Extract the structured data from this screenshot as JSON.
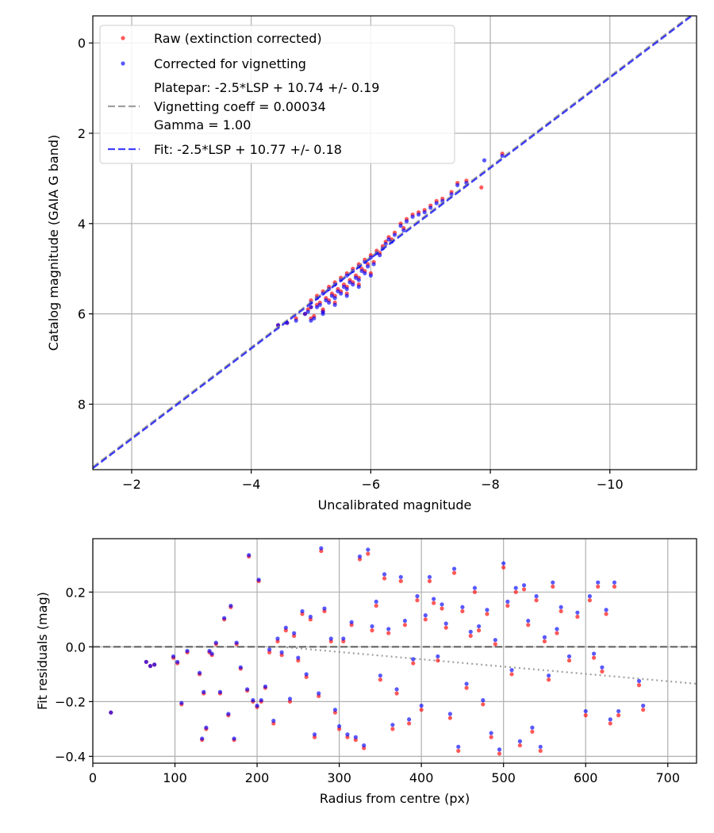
{
  "chart_data": [
    {
      "type": "scatter",
      "xlabel": "Uncalibrated magnitude",
      "ylabel": "Catalog magnitude (GAIA G band)",
      "xlim": [
        -1.35,
        -11.45
      ],
      "ylim": [
        9.45,
        -0.6
      ],
      "x_inverted": true,
      "y_inverted": true,
      "xticks": [
        -2,
        -4,
        -6,
        -8,
        -10
      ],
      "xtick_labels": [
        "−2",
        "−4",
        "−6",
        "−8",
        "−10"
      ],
      "yticks": [
        0,
        2,
        4,
        6,
        8
      ],
      "ytick_labels": [
        "0",
        "2",
        "4",
        "6",
        "8"
      ],
      "grid": true,
      "legend_position": "upper-left",
      "legend": [
        {
          "kind": "marker",
          "color": "#ff0000",
          "lines": [
            "Raw (extinction corrected)"
          ]
        },
        {
          "kind": "marker",
          "color": "#0000ff",
          "lines": [
            "Corrected for vignetting"
          ]
        },
        {
          "kind": "line",
          "color": "#808080",
          "dash": "dashed",
          "lines": [
            "Platepar: -2.5*LSP + 10.74 +/- 0.19",
            "Vignetting coeff = 0.00034",
            "Gamma = 1.00"
          ]
        },
        {
          "kind": "line",
          "color": "#0000ff",
          "dash": "dashed",
          "lines": [
            "Fit: -2.5*LSP + 10.77 +/- 0.18"
          ]
        }
      ],
      "series": [
        {
          "name": "Platepar: -2.5*LSP + 10.74 +/- 0.19",
          "kind": "line",
          "color": "#808080",
          "slope": 1.0,
          "intercept": 10.74
        },
        {
          "name": "Fit: -2.5*LSP + 10.77 +/- 0.18",
          "kind": "line",
          "color": "#0000ff",
          "slope": 1.0,
          "intercept": 10.77
        },
        {
          "name": "Raw (extinction corrected)",
          "kind": "scatter",
          "color": "#ff0000",
          "x": [
            -4.45,
            -4.6,
            -4.75,
            -4.9,
            -4.95,
            -5.0,
            -5.0,
            -5.05,
            -5.1,
            -5.1,
            -5.15,
            -5.2,
            -5.2,
            -5.25,
            -5.3,
            -5.3,
            -5.35,
            -5.4,
            -5.4,
            -5.45,
            -5.5,
            -5.5,
            -5.55,
            -5.6,
            -5.6,
            -5.65,
            -5.7,
            -5.7,
            -5.75,
            -5.8,
            -5.8,
            -5.85,
            -5.9,
            -5.9,
            -5.95,
            -6.0,
            -6.05,
            -6.1,
            -6.15,
            -6.2,
            -6.25,
            -6.3,
            -6.35,
            -6.4,
            -6.5,
            -6.55,
            -6.6,
            -6.7,
            -6.8,
            -6.9,
            -7.0,
            -7.1,
            -7.2,
            -7.35,
            -7.45,
            -7.6,
            -7.85,
            -8.2,
            -5.0,
            -5.2,
            -5.4,
            -5.6,
            -5.8,
            -6.0
          ],
          "y": [
            6.25,
            6.2,
            6.1,
            6.0,
            5.9,
            5.7,
            5.85,
            6.05,
            5.6,
            5.8,
            5.75,
            5.5,
            5.9,
            5.65,
            5.4,
            5.7,
            5.55,
            5.3,
            5.6,
            5.45,
            5.2,
            5.5,
            5.35,
            5.1,
            5.4,
            5.25,
            5.0,
            5.3,
            5.15,
            4.9,
            5.2,
            5.0,
            4.8,
            5.05,
            4.9,
            4.7,
            4.85,
            4.6,
            4.65,
            4.5,
            4.4,
            4.3,
            4.35,
            4.2,
            4.0,
            4.1,
            3.9,
            3.8,
            3.75,
            3.7,
            3.6,
            3.5,
            3.45,
            3.3,
            3.1,
            3.05,
            3.2,
            2.45,
            6.1,
            5.95,
            5.75,
            5.55,
            5.35,
            5.1
          ]
        },
        {
          "name": "Corrected for vignetting",
          "kind": "scatter",
          "color": "#0000ff",
          "x": [
            -4.45,
            -4.6,
            -4.75,
            -4.9,
            -4.95,
            -5.0,
            -5.0,
            -5.05,
            -5.1,
            -5.1,
            -5.15,
            -5.2,
            -5.2,
            -5.25,
            -5.3,
            -5.3,
            -5.35,
            -5.4,
            -5.4,
            -5.45,
            -5.5,
            -5.5,
            -5.55,
            -5.6,
            -5.6,
            -5.65,
            -5.7,
            -5.7,
            -5.75,
            -5.8,
            -5.8,
            -5.85,
            -5.9,
            -5.9,
            -5.95,
            -6.0,
            -6.05,
            -6.1,
            -6.15,
            -6.2,
            -6.25,
            -6.3,
            -6.35,
            -6.4,
            -6.5,
            -6.55,
            -6.6,
            -6.7,
            -6.8,
            -6.9,
            -7.0,
            -7.1,
            -7.2,
            -7.35,
            -7.45,
            -7.6,
            -7.9,
            -8.2,
            -5.0,
            -5.2,
            -5.4,
            -5.6,
            -5.8,
            -6.0
          ],
          "y": [
            6.25,
            6.2,
            6.15,
            6.0,
            5.95,
            5.75,
            5.85,
            6.1,
            5.65,
            5.85,
            5.8,
            5.55,
            5.95,
            5.7,
            5.45,
            5.75,
            5.6,
            5.35,
            5.65,
            5.5,
            5.25,
            5.55,
            5.4,
            5.15,
            5.45,
            5.3,
            5.05,
            5.35,
            5.2,
            4.95,
            5.25,
            5.05,
            4.85,
            5.1,
            4.95,
            4.75,
            4.9,
            4.65,
            4.7,
            4.55,
            4.45,
            4.35,
            4.4,
            4.25,
            4.05,
            4.15,
            3.95,
            3.85,
            3.8,
            3.75,
            3.65,
            3.55,
            3.5,
            3.35,
            3.15,
            3.1,
            2.6,
            2.5,
            6.15,
            6.0,
            5.8,
            5.6,
            5.4,
            5.15
          ]
        }
      ]
    },
    {
      "type": "scatter",
      "xlabel": "Radius from centre (px)",
      "ylabel": "Fit residuals (mag)",
      "xlim": [
        0,
        735
      ],
      "ylim": [
        -0.425,
        0.395
      ],
      "xticks": [
        0,
        100,
        200,
        300,
        400,
        500,
        600,
        700
      ],
      "xtick_labels": [
        "0",
        "100",
        "200",
        "300",
        "400",
        "500",
        "600",
        "700"
      ],
      "yticks": [
        -0.4,
        -0.2,
        0.0,
        0.2
      ],
      "ytick_labels": [
        "−0.4",
        "−0.2",
        "0.0",
        "0.2"
      ],
      "grid": true,
      "series": [
        {
          "name": "zero line",
          "kind": "line",
          "color": "#404040",
          "dash": "dashed",
          "x": [
            0,
            735
          ],
          "y": [
            0.0,
            0.0
          ]
        },
        {
          "name": "vignetting trend",
          "kind": "line",
          "color": "#808080",
          "dash": "dotted",
          "x": [
            230,
            735
          ],
          "y": [
            0.0,
            -0.135
          ]
        },
        {
          "name": "Raw residuals",
          "kind": "scatter",
          "color": "#ff0000",
          "x": [
            22,
            65,
            70,
            75,
            98,
            103,
            108,
            115,
            130,
            133,
            135,
            138,
            142,
            145,
            150,
            155,
            160,
            165,
            168,
            172,
            175,
            180,
            188,
            190,
            195,
            200,
            202,
            205,
            210,
            215,
            220,
            225,
            230,
            235,
            240,
            245,
            250,
            255,
            260,
            265,
            270,
            275,
            278,
            282,
            290,
            295,
            300,
            305,
            310,
            315,
            320,
            325,
            330,
            335,
            340,
            345,
            350,
            355,
            360,
            365,
            370,
            375,
            380,
            385,
            390,
            395,
            400,
            405,
            410,
            415,
            420,
            425,
            430,
            435,
            440,
            445,
            450,
            455,
            460,
            465,
            470,
            475,
            480,
            485,
            490,
            495,
            500,
            505,
            510,
            515,
            520,
            525,
            530,
            535,
            540,
            545,
            550,
            555,
            560,
            565,
            570,
            580,
            590,
            600,
            605,
            610,
            615,
            620,
            625,
            630,
            635,
            640,
            665,
            670
          ],
          "y": [
            -0.24,
            -0.055,
            -0.07,
            -0.065,
            -0.04,
            -0.06,
            -0.21,
            -0.02,
            -0.1,
            -0.34,
            -0.17,
            -0.3,
            -0.02,
            -0.03,
            0.01,
            -0.17,
            0.1,
            -0.25,
            0.145,
            -0.34,
            0.01,
            -0.08,
            -0.16,
            0.33,
            -0.2,
            -0.22,
            0.24,
            -0.2,
            -0.15,
            -0.02,
            -0.28,
            0.02,
            -0.03,
            0.06,
            -0.2,
            0.04,
            -0.05,
            0.12,
            -0.11,
            0.1,
            -0.33,
            -0.18,
            0.35,
            0.13,
            0.02,
            -0.24,
            -0.3,
            0.02,
            -0.33,
            0.08,
            -0.34,
            0.32,
            -0.37,
            0.34,
            0.06,
            0.15,
            -0.12,
            0.25,
            0.05,
            -0.3,
            -0.17,
            0.24,
            0.08,
            -0.28,
            -0.06,
            0.17,
            -0.23,
            0.1,
            0.24,
            0.16,
            -0.05,
            0.14,
            0.07,
            -0.26,
            0.27,
            -0.38,
            0.13,
            -0.15,
            0.04,
            0.2,
            0.06,
            -0.21,
            0.12,
            -0.33,
            0.01,
            -0.39,
            0.29,
            0.15,
            -0.1,
            0.2,
            -0.36,
            0.21,
            0.08,
            -0.31,
            0.17,
            -0.38,
            0.02,
            -0.12,
            0.22,
            0.05,
            0.13,
            -0.05,
            0.11,
            -0.25,
            0.17,
            -0.04,
            0.22,
            -0.09,
            0.12,
            -0.28,
            0.22,
            -0.25,
            -0.14,
            -0.23
          ]
        },
        {
          "name": "Corrected residuals",
          "kind": "scatter",
          "color": "#0000ff",
          "x": [
            22,
            65,
            70,
            75,
            98,
            103,
            108,
            115,
            130,
            133,
            135,
            138,
            142,
            145,
            150,
            155,
            160,
            165,
            168,
            172,
            175,
            180,
            188,
            190,
            195,
            200,
            202,
            205,
            210,
            215,
            220,
            225,
            230,
            235,
            240,
            245,
            250,
            255,
            260,
            265,
            270,
            275,
            278,
            282,
            290,
            295,
            300,
            305,
            310,
            315,
            320,
            325,
            330,
            335,
            340,
            345,
            350,
            355,
            360,
            365,
            370,
            375,
            380,
            385,
            390,
            395,
            400,
            405,
            410,
            415,
            420,
            425,
            430,
            435,
            440,
            445,
            450,
            455,
            460,
            465,
            470,
            475,
            480,
            485,
            490,
            495,
            500,
            505,
            510,
            515,
            520,
            525,
            530,
            535,
            540,
            545,
            550,
            555,
            560,
            565,
            570,
            580,
            590,
            600,
            605,
            610,
            615,
            620,
            625,
            630,
            635,
            640,
            665,
            670
          ],
          "y": [
            -0.24,
            -0.055,
            -0.07,
            -0.065,
            -0.035,
            -0.055,
            -0.205,
            -0.015,
            -0.095,
            -0.335,
            -0.165,
            -0.295,
            -0.015,
            -0.025,
            0.015,
            -0.165,
            0.105,
            -0.245,
            0.15,
            -0.335,
            0.015,
            -0.075,
            -0.155,
            0.335,
            -0.195,
            -0.215,
            0.245,
            -0.195,
            -0.145,
            -0.01,
            -0.27,
            0.03,
            -0.02,
            0.07,
            -0.19,
            0.05,
            -0.04,
            0.13,
            -0.1,
            0.11,
            -0.32,
            -0.17,
            0.36,
            0.14,
            0.03,
            -0.23,
            -0.29,
            0.03,
            -0.32,
            0.09,
            -0.33,
            0.33,
            -0.36,
            0.355,
            0.075,
            0.165,
            -0.105,
            0.265,
            0.065,
            -0.285,
            -0.155,
            0.255,
            0.095,
            -0.265,
            -0.045,
            0.185,
            -0.215,
            0.115,
            0.255,
            0.175,
            -0.035,
            0.155,
            0.085,
            -0.245,
            0.285,
            -0.365,
            0.145,
            -0.135,
            0.055,
            0.215,
            0.075,
            -0.195,
            0.135,
            -0.315,
            0.025,
            -0.375,
            0.305,
            0.165,
            -0.085,
            0.215,
            -0.345,
            0.225,
            0.095,
            -0.295,
            0.185,
            -0.365,
            0.035,
            -0.105,
            0.235,
            0.065,
            0.145,
            -0.035,
            0.125,
            -0.235,
            0.185,
            -0.025,
            0.235,
            -0.075,
            0.135,
            -0.265,
            0.235,
            -0.235,
            -0.125,
            -0.215
          ]
        }
      ]
    }
  ]
}
